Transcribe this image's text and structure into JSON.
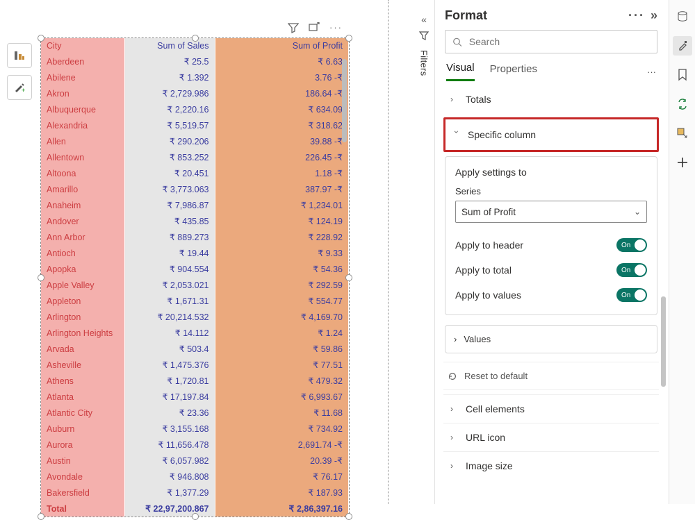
{
  "colors": {
    "city_bg": "#f4b0ad",
    "city_fg": "#cc3d41",
    "sales_bg": "#e6e6e6",
    "profit_bg": "#eba97d",
    "value_fg": "#3b3da0",
    "highlight_border": "#c62828",
    "toggle_bg": "#0b7565"
  },
  "table": {
    "columns": {
      "city": "City",
      "sales": "Sum of Sales",
      "profit": "Sum of Profit"
    },
    "rows": [
      {
        "city": "Aberdeen",
        "sales": "₹ 25.5",
        "profit": "₹ 6.63"
      },
      {
        "city": "Abilene",
        "sales": "₹ 1.392",
        "profit": "3.76 -₹"
      },
      {
        "city": "Akron",
        "sales": "₹ 2,729.986",
        "profit": "186.64 -₹"
      },
      {
        "city": "Albuquerque",
        "sales": "₹ 2,220.16",
        "profit": "₹ 634.09"
      },
      {
        "city": "Alexandria",
        "sales": "₹ 5,519.57",
        "profit": "₹ 318.62"
      },
      {
        "city": "Allen",
        "sales": "₹ 290.206",
        "profit": "39.88 -₹"
      },
      {
        "city": "Allentown",
        "sales": "₹ 853.252",
        "profit": "226.45 -₹"
      },
      {
        "city": "Altoona",
        "sales": "₹ 20.451",
        "profit": "1.18 -₹"
      },
      {
        "city": "Amarillo",
        "sales": "₹ 3,773.063",
        "profit": "387.97 -₹"
      },
      {
        "city": "Anaheim",
        "sales": "₹ 7,986.87",
        "profit": "₹ 1,234.01"
      },
      {
        "city": "Andover",
        "sales": "₹ 435.85",
        "profit": "₹ 124.19"
      },
      {
        "city": "Ann Arbor",
        "sales": "₹ 889.273",
        "profit": "₹ 228.92"
      },
      {
        "city": "Antioch",
        "sales": "₹ 19.44",
        "profit": "₹ 9.33"
      },
      {
        "city": "Apopka",
        "sales": "₹ 904.554",
        "profit": "₹ 54.36"
      },
      {
        "city": "Apple Valley",
        "sales": "₹ 2,053.021",
        "profit": "₹ 292.59"
      },
      {
        "city": "Appleton",
        "sales": "₹ 1,671.31",
        "profit": "₹ 554.77"
      },
      {
        "city": "Arlington",
        "sales": "₹ 20,214.532",
        "profit": "₹ 4,169.70"
      },
      {
        "city": "Arlington Heights",
        "sales": "₹ 14.112",
        "profit": "₹ 1.24"
      },
      {
        "city": "Arvada",
        "sales": "₹ 503.4",
        "profit": "₹ 59.86"
      },
      {
        "city": "Asheville",
        "sales": "₹ 1,475.376",
        "profit": "₹ 77.51"
      },
      {
        "city": "Athens",
        "sales": "₹ 1,720.81",
        "profit": "₹ 479.32"
      },
      {
        "city": "Atlanta",
        "sales": "₹ 17,197.84",
        "profit": "₹ 6,993.67"
      },
      {
        "city": "Atlantic City",
        "sales": "₹ 23.36",
        "profit": "₹ 11.68"
      },
      {
        "city": "Auburn",
        "sales": "₹ 3,155.168",
        "profit": "₹ 734.92"
      },
      {
        "city": "Aurora",
        "sales": "₹ 11,656.478",
        "profit": "2,691.74 -₹"
      },
      {
        "city": "Austin",
        "sales": "₹ 6,057.982",
        "profit": "20.39 -₹"
      },
      {
        "city": "Avondale",
        "sales": "₹ 946.808",
        "profit": "₹ 76.17"
      },
      {
        "city": "Bakersfield",
        "sales": "₹ 1,377.29",
        "profit": "₹ 187.93"
      }
    ],
    "total": {
      "label": "Total",
      "sales": "₹ 22,97,200.867",
      "profit": "₹ 2,86,397.16"
    }
  },
  "filters": {
    "label": "Filters"
  },
  "format": {
    "title": "Format",
    "search_placeholder": "Search",
    "tabs": {
      "visual": "Visual",
      "properties": "Properties"
    },
    "sections": {
      "totals": "Totals",
      "specific_column": "Specific column",
      "values": "Values",
      "cell_elements": "Cell elements",
      "url_icon": "URL icon",
      "image_size": "Image size"
    },
    "apply_card": {
      "title": "Apply settings to",
      "series_label": "Series",
      "series_value": "Sum of Profit",
      "apply_header": "Apply to header",
      "apply_total": "Apply to total",
      "apply_values": "Apply to values",
      "toggle_on": "On"
    },
    "reset": "Reset to default"
  }
}
